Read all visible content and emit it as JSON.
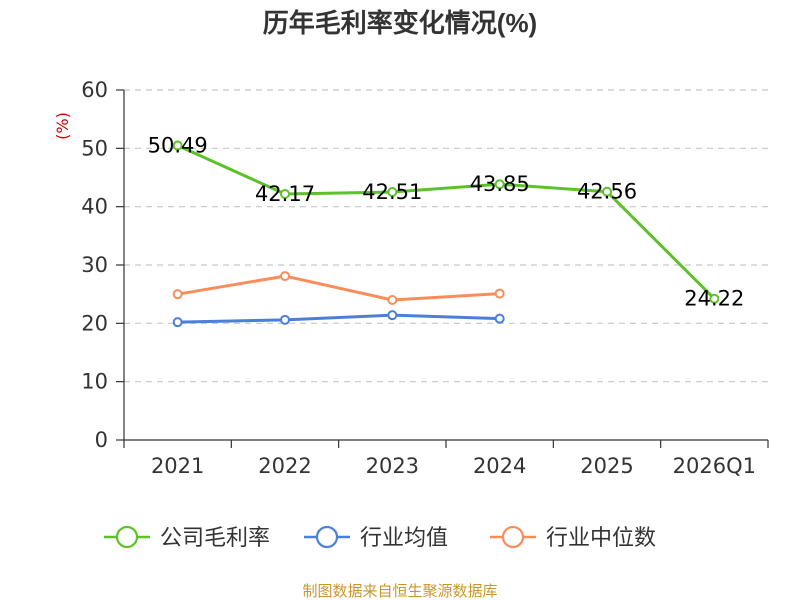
{
  "chart_data": {
    "type": "line",
    "title": "历年毛利率变化情况(%)",
    "unit_label": "(%)",
    "categories": [
      "2021",
      "2022",
      "2023",
      "2024",
      "2025",
      "2026Q1"
    ],
    "ylim": [
      0,
      60
    ],
    "y_ticks": [
      0,
      10,
      20,
      30,
      40,
      50,
      60
    ],
    "grid": "horizontal dashed",
    "legend_position": "bottom",
    "series": [
      {
        "name": "公司毛利率",
        "color": "#5dc22a",
        "values": [
          50.49,
          42.17,
          42.51,
          43.85,
          42.56,
          24.22
        ],
        "labels": [
          "50.49",
          "42.17",
          "42.51",
          "43.85",
          "42.56",
          "24.22"
        ]
      },
      {
        "name": "行业均值",
        "color": "#4a7fdb",
        "values": [
          20.2,
          20.6,
          21.4,
          20.8,
          null,
          null
        ]
      },
      {
        "name": "行业中位数",
        "color": "#f98d5a",
        "values": [
          25.0,
          28.1,
          24.0,
          25.1,
          null,
          null
        ]
      }
    ],
    "source": "制图数据来自恒生聚源数据库"
  }
}
